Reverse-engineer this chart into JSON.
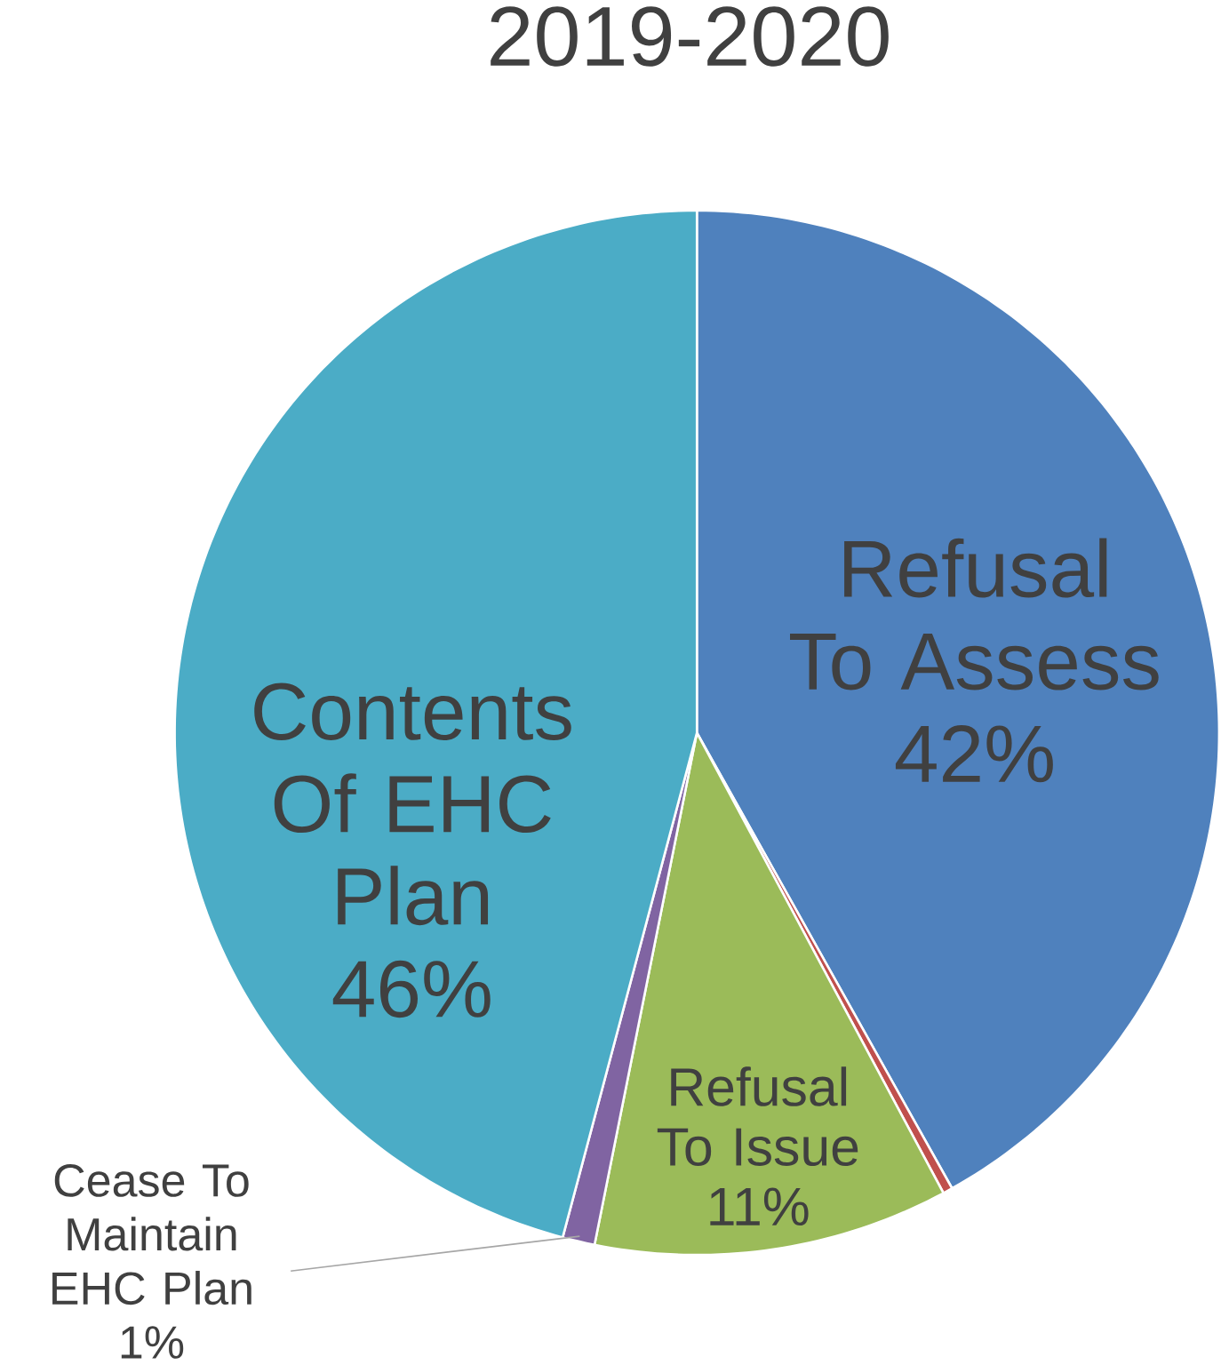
{
  "chart_data": {
    "type": "pie",
    "title": "2019-2020",
    "categories": [
      "Refusal To Assess",
      null,
      "Refusal To Issue",
      "Cease To Maintain EHC Plan",
      "Contents Of EHC Plan"
    ],
    "values": [
      42,
      0.3,
      11,
      1,
      46
    ],
    "value_labels": [
      "42%",
      null,
      "11%",
      "1%",
      "46%"
    ],
    "colors": [
      "#4f81bd",
      "#c0504d",
      "#9bbb59",
      "#8064a2",
      "#4bacc6"
    ]
  }
}
